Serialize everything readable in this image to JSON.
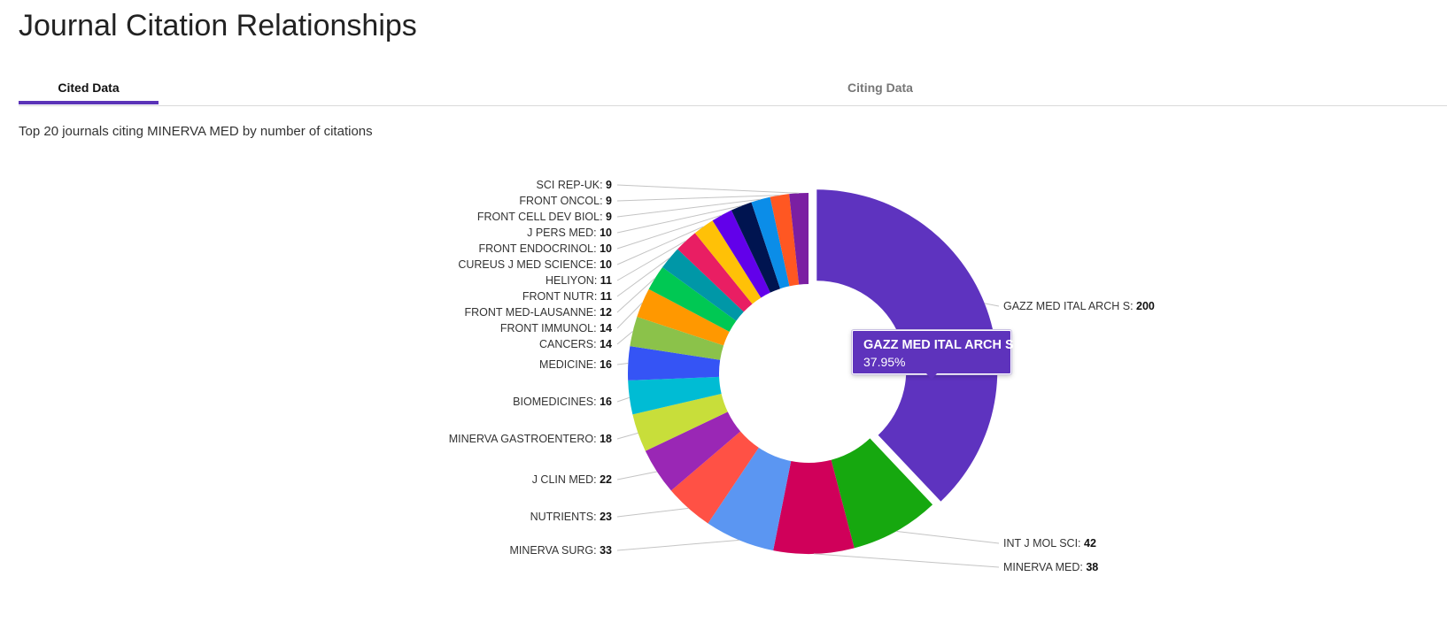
{
  "header": {
    "title": "Journal Citation Relationships"
  },
  "tabs": [
    {
      "label": "Cited Data",
      "active": true
    },
    {
      "label": "Citing Data",
      "active": false
    }
  ],
  "subtitle": "Top 20 journals citing MINERVA MED by number of citations",
  "chart_data": {
    "type": "pie",
    "title": "Top 20 journals citing MINERVA MED by number of citations",
    "donut": true,
    "start": "12 o'clock",
    "direction": "clockwise",
    "highlighted": "GAZZ MED ITAL ARCH S",
    "categories": [
      "GAZZ MED ITAL ARCH S",
      "INT J MOL SCI",
      "MINERVA MED",
      "MINERVA SURG",
      "NUTRIENTS",
      "J CLIN MED",
      "MINERVA GASTROENTERO",
      "BIOMEDICINES",
      "MEDICINE",
      "CANCERS",
      "FRONT IMMUNOL",
      "FRONT MED-LAUSANNE",
      "FRONT NUTR",
      "HELIYON",
      "CUREUS J MED SCIENCE",
      "FRONT ENDOCRINOL",
      "J PERS MED",
      "FRONT CELL DEV BIOL",
      "FRONT ONCOL",
      "SCI REP-UK"
    ],
    "values": [
      200,
      42,
      38,
      33,
      23,
      22,
      18,
      16,
      16,
      14,
      14,
      12,
      11,
      11,
      10,
      10,
      10,
      9,
      9,
      9
    ],
    "colors": [
      "#5e33bf",
      "#16a80f",
      "#d0005a",
      "#5b96f2",
      "#ff5145",
      "#9a27b5",
      "#c8de3a",
      "#00bcd4",
      "#3554f5",
      "#8bc24a",
      "#ff9800",
      "#00c853",
      "#0097a7",
      "#e91e63",
      "#ffc107",
      "#6200ea",
      "#001450",
      "#0b8de8",
      "#ff5722",
      "#7b1fa2"
    ]
  },
  "tooltip": {
    "name": "GAZZ MED ITAL ARCH S",
    "percent": "37.95%"
  }
}
